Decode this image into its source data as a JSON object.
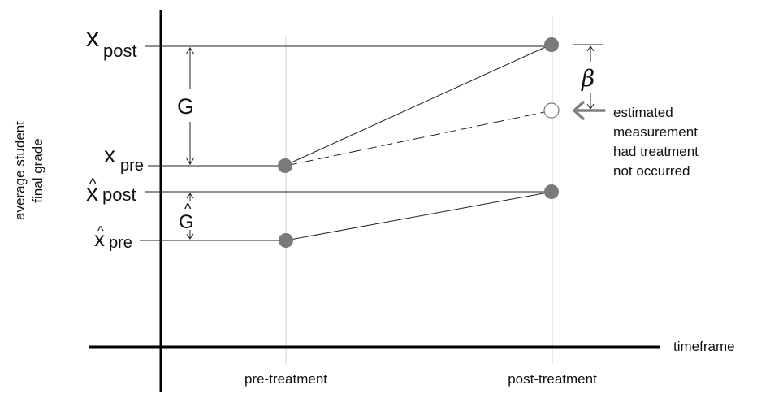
{
  "y_axis_label": {
    "line1": "average student",
    "line2": "final grade"
  },
  "x_axis_label": "timeframe",
  "categories": [
    {
      "label": "pre-treatment"
    },
    {
      "label": "post-treatment"
    }
  ],
  "level_labels": {
    "x_post": {
      "base": "x",
      "sub": "post"
    },
    "x_pre": {
      "base": "x",
      "sub": "pre"
    },
    "xhat_post": {
      "base": "x",
      "hat": "^",
      "sub": "post"
    },
    "xhat_pre": {
      "base": "x",
      "hat": "^",
      "sub": "pre"
    }
  },
  "gaps": {
    "G": {
      "label": "G"
    },
    "G_hat": {
      "label": "G",
      "hat": "^"
    },
    "beta": {
      "label": "β"
    }
  },
  "annotation": {
    "lines": [
      "estimated",
      "measurement",
      "had treatment",
      "not occurred"
    ],
    "arrow_color": "#808080"
  },
  "colors": {
    "point_fill": "#7a7a7a",
    "hollow_point_stroke": "#7a7a7a",
    "axis": "#000000",
    "line": "#222222",
    "guide": "#cccccc"
  }
}
